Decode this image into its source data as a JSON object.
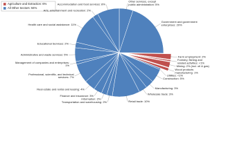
{
  "chart_data": {
    "type": "pie",
    "legend": [
      {
        "label": "Agriculture and Extraction: 6%",
        "color": "#c0504d",
        "exploded": true
      },
      {
        "label": "All Other Sectors: 94%",
        "color": "#4f81bd",
        "exploded": false
      }
    ],
    "categories": [
      "Other services, except public administration: 5%",
      "Government and government enterprises: 20%",
      "Farm employment: 2%",
      "Forestry, fishing and related activities: <1%",
      "Mining: 2% (incl. oil & gas)",
      "Wood products manufacturing: 1%",
      "Utilities: <1%",
      "Construction: 5%",
      "Manufacturing: 3%",
      "Wholesale trade: 3%",
      "Retail trade: 10%",
      "Transportation and warehousing: 2%",
      "Information: 2%",
      "Finance and insurance: 3%",
      "Real estate and rental and leasing: 4%",
      "Professional, scientific, and technical services: 7%",
      "Management of companies and enterprises: 1%",
      "Administrative and waste services: 5%",
      "Educational Services: 2%",
      "Health care and social assistance: 11%",
      "Arts, entertainment and recreation: 2%",
      "Accommodation and food services: 8%"
    ],
    "values": [
      5,
      20,
      2,
      0.5,
      2,
      1,
      0.5,
      5,
      3,
      3,
      10,
      2,
      2,
      3,
      4,
      7,
      1,
      5,
      2,
      11,
      2,
      8
    ],
    "groups": [
      1,
      1,
      0,
      0,
      0,
      0,
      1,
      1,
      1,
      1,
      1,
      1,
      1,
      1,
      1,
      1,
      1,
      1,
      1,
      1,
      1,
      1
    ]
  }
}
